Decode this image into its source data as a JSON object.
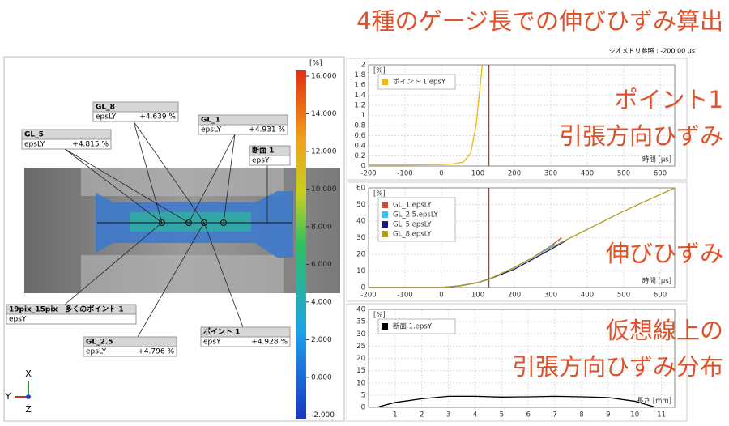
{
  "title": "4種のゲージ長での伸びひずみ算出",
  "geometry_ref": "ジオメトリ参照 : -200.00 µs",
  "left_panel": {
    "colorbar": {
      "unit": "[%]",
      "lim": [
        -2.2,
        16.3
      ],
      "ticks": [
        {
          "value": 16,
          "label": "16.000"
        },
        {
          "value": 14,
          "label": "14.000"
        },
        {
          "value": 12,
          "label": "12.000"
        },
        {
          "value": 10,
          "label": "10.000"
        },
        {
          "value": 8,
          "label": "8.000"
        },
        {
          "value": 6,
          "label": "6.000"
        },
        {
          "value": 4,
          "label": "4.000"
        },
        {
          "value": 2,
          "label": "2.000"
        },
        {
          "value": 0,
          "label": "0.000"
        },
        {
          "value": -2,
          "label": "-2.000"
        }
      ]
    },
    "callouts": [
      {
        "name": "GL_8",
        "quantity": "epsLY",
        "value": "+4.639 %"
      },
      {
        "name": "GL_1",
        "quantity": "epsLY",
        "value": "+4.931 %"
      },
      {
        "name": "GL_5",
        "quantity": "epsLY",
        "value": "+4.815 %"
      },
      {
        "name": "断面 1",
        "quantity": "epsY"
      },
      {
        "name": "19pix_15pix　多くのポイント 1",
        "quantity": "epsY"
      },
      {
        "name": "GL_2.5",
        "quantity": "epsLY",
        "value": "+4.796 %"
      },
      {
        "name": "ポイント 1",
        "quantity": "epsY",
        "value": "+4.928 %"
      }
    ],
    "axis_triad": [
      "X",
      "Y",
      "Z"
    ]
  },
  "chart_data": [
    {
      "type": "line",
      "y_label": "[%]",
      "x_label": "時間 [µs]",
      "xlim": [
        -200,
        640
      ],
      "xticks": [
        -200,
        -100,
        0,
        100,
        200,
        300,
        400,
        500,
        600
      ],
      "ylim": [
        0,
        2
      ],
      "yticks": [
        0,
        0.2,
        0.4,
        0.6,
        0.8,
        1,
        1.2,
        1.4,
        1.6,
        1.8,
        2
      ],
      "grid": true,
      "cursor_x": 130,
      "series": [
        {
          "name": "ポイント 1.epsY",
          "color": "#e8b820",
          "x": [
            -200,
            -100,
            0,
            30,
            60,
            80,
            95,
            105,
            112
          ],
          "values": [
            0.02,
            0.02,
            0.03,
            0.04,
            0.08,
            0.25,
            0.8,
            1.5,
            2
          ]
        }
      ],
      "annotations": [
        "ポイント1",
        "引張方向ひずみ"
      ]
    },
    {
      "type": "line",
      "y_label": "[%]",
      "x_label": "時間 [µs]",
      "xlim": [
        -200,
        640
      ],
      "xticks": [
        -200,
        -100,
        0,
        100,
        200,
        300,
        400,
        500,
        600
      ],
      "ylim": [
        0,
        60
      ],
      "yticks": [
        0,
        10,
        20,
        30,
        40,
        50,
        60
      ],
      "grid": true,
      "cursor_x": 130,
      "series": [
        {
          "name": "GL_1.epsLY",
          "color": "#c0503a",
          "x": [
            -200,
            0,
            50,
            100,
            130,
            200,
            250,
            300,
            330
          ],
          "values": [
            0,
            0,
            1,
            3,
            5,
            12,
            18,
            25,
            30
          ]
        },
        {
          "name": "GL_2.5.epsLY",
          "color": "#40c0f0",
          "x": [
            -200,
            0,
            50,
            100,
            130,
            200,
            250,
            280,
            310
          ],
          "values": [
            0,
            0,
            1,
            3,
            5,
            12,
            18,
            22,
            26
          ]
        },
        {
          "name": "GL_5.epsLY",
          "color": "#1a1a80",
          "x": [
            -200,
            0,
            50,
            100,
            130,
            200,
            250,
            300,
            340
          ],
          "values": [
            0,
            0,
            1,
            3,
            5,
            11,
            17,
            23,
            28
          ]
        },
        {
          "name": "GL_8.epsLY",
          "color": "#b0a020",
          "x": [
            -200,
            0,
            50,
            100,
            130,
            200,
            250,
            300,
            400,
            500,
            640
          ],
          "values": [
            0,
            0,
            1,
            3,
            5,
            12,
            18,
            24,
            35,
            46,
            60
          ]
        }
      ],
      "annotations": [
        "伸びひずみ"
      ]
    },
    {
      "type": "line",
      "y_label": "[%]",
      "x_label": "長さ [mm]",
      "xlim": [
        0,
        11.5
      ],
      "xticks": [
        1,
        2,
        3,
        4,
        5,
        6,
        7,
        8,
        9,
        10,
        11
      ],
      "ylim": [
        0,
        40
      ],
      "yticks": [
        0,
        5,
        10,
        15,
        20,
        25,
        30,
        35,
        40
      ],
      "grid": true,
      "series": [
        {
          "name": "断面 1.epsY",
          "color": "#000000",
          "x": [
            0.3,
            1,
            2,
            3,
            4,
            5,
            6,
            7,
            8,
            9,
            10,
            10.8
          ],
          "values": [
            0,
            2,
            3.5,
            4.5,
            4.5,
            4.2,
            4.3,
            4.5,
            4.3,
            4,
            2.5,
            0
          ]
        }
      ],
      "annotations": [
        "仮想線上の",
        "引張方向ひずみ分布"
      ]
    }
  ]
}
